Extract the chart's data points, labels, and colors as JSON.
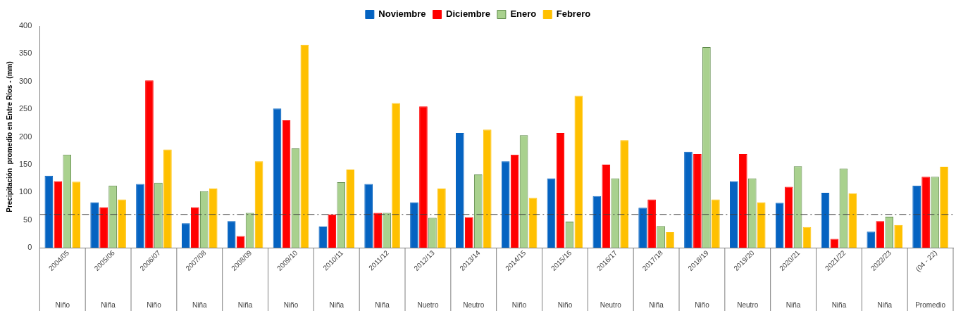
{
  "chart_data": {
    "type": "bar",
    "ylabel": "Precipitación  promedio en Entre Ríos - (mm)",
    "categories": [
      "2004/05\nNiño",
      "2005/06\nNiña",
      "2006/07\nNiño",
      "2007/08\nNiña",
      "2008/09\nNiña",
      "2009/10\nNiño",
      "2010/11\nNiña",
      "2011/12\nNiña",
      "2012/13\nNuetro",
      "2013/14\nNeutro",
      "2014/15\nNiño",
      "2015/16\nNiño",
      "2016/17\nNeutro",
      "2017/18\nNiña",
      "2018/19\nNiño",
      "2019/20\nNeutro",
      "2020/21\nNiña",
      "2021/22\nNiña",
      "2022/23\nNiña",
      "(04 - 22)\nPromedio"
    ],
    "series": [
      {
        "name": "Noviembre",
        "color": "#0563c1",
        "values": [
          130,
          82,
          115,
          44,
          48,
          251,
          38,
          115,
          82,
          207,
          156,
          125,
          93,
          72,
          173,
          120,
          81,
          99,
          29,
          112
        ]
      },
      {
        "name": "Diciembre",
        "color": "#ff0000",
        "values": [
          120,
          73,
          302,
          73,
          21,
          230,
          60,
          63,
          255,
          55,
          168,
          207,
          150,
          87,
          169,
          169,
          110,
          16,
          48,
          128
        ]
      },
      {
        "name": "Enero",
        "color": "#a9d18e",
        "values": [
          168,
          112,
          117,
          102,
          63,
          179,
          118,
          63,
          54,
          132,
          203,
          47,
          125,
          39,
          362,
          125,
          147,
          143,
          56,
          128
        ]
      },
      {
        "name": "Febrero",
        "color": "#ffc000",
        "values": [
          119,
          87,
          177,
          107,
          156,
          366,
          141,
          261,
          107,
          213,
          90,
          274,
          194,
          28,
          87,
          82,
          37,
          98,
          41,
          146
        ]
      }
    ],
    "ylim": [
      0,
      400
    ],
    "yticks": [
      0,
      50,
      100,
      150,
      200,
      250,
      300,
      350,
      400
    ],
    "grid": false,
    "legend": "top",
    "ref_lines": [
      {
        "axis": "y",
        "value": 60,
        "line_style": "dashdot",
        "color": "#404040"
      }
    ]
  }
}
